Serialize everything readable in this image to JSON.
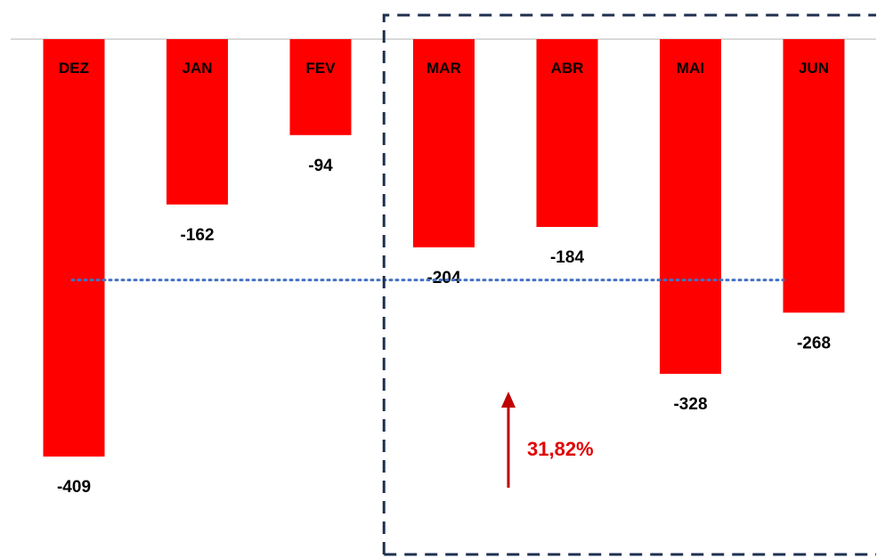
{
  "chart_data": {
    "type": "bar",
    "categories": [
      "DEZ",
      "JAN",
      "FEV",
      "MAR",
      "ABR",
      "MAI",
      "JUN"
    ],
    "values": [
      -409,
      -162,
      -94,
      -204,
      -184,
      -328,
      -268
    ],
    "value_labels": [
      "-409",
      "-162",
      "-94",
      "-204",
      "-184",
      "-328",
      "-268"
    ],
    "ylim": [
      -409,
      0
    ],
    "bar_color": "#ff0000",
    "average_line": {
      "value": -236,
      "color": "#4472c4",
      "style": "dotted"
    },
    "highlight_box": {
      "from_category": "MAR",
      "to_category": "JUN",
      "color": "#1f3050",
      "style": "dashed"
    },
    "annotation": {
      "text": "31,82%",
      "color": "#e00000",
      "arrow_color": "#c00000",
      "arrow_direction": "up"
    },
    "grid": false,
    "legend": "none"
  }
}
